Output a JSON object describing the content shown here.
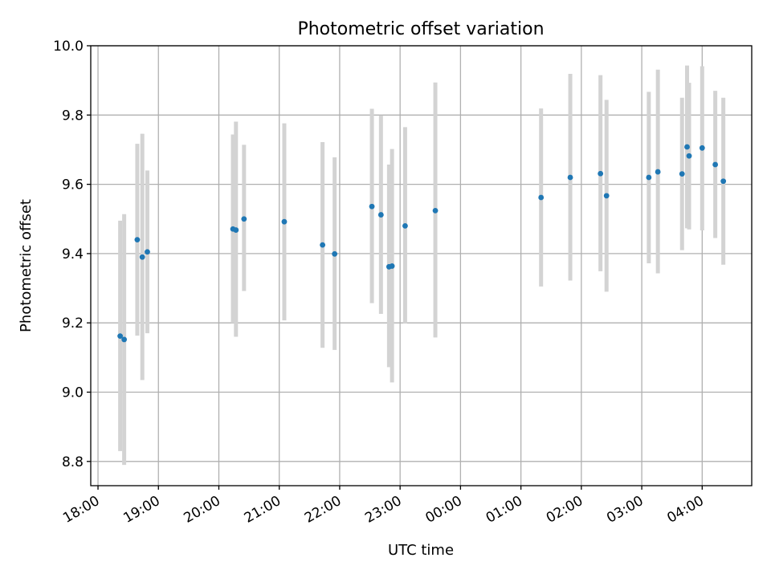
{
  "chart_data": {
    "type": "scatter",
    "title": "Photometric offset variation",
    "xlabel": "UTC time",
    "ylabel": "Photometric offset",
    "x_axis_type": "time",
    "x_start": "18:00",
    "x_range_hours": [
      -0.12,
      10.82
    ],
    "ylim": [
      8.73,
      10.0
    ],
    "grid": true,
    "x_ticks": [
      {
        "label": "18:00",
        "hours": 0
      },
      {
        "label": "19:00",
        "hours": 1
      },
      {
        "label": "20:00",
        "hours": 2
      },
      {
        "label": "21:00",
        "hours": 3
      },
      {
        "label": "22:00",
        "hours": 4
      },
      {
        "label": "23:00",
        "hours": 5
      },
      {
        "label": "00:00",
        "hours": 6
      },
      {
        "label": "01:00",
        "hours": 7
      },
      {
        "label": "02:00",
        "hours": 8
      },
      {
        "label": "03:00",
        "hours": 9
      },
      {
        "label": "04:00",
        "hours": 10
      }
    ],
    "y_ticks": [
      {
        "label": "8.8",
        "value": 8.8
      },
      {
        "label": "9.0",
        "value": 9.0
      },
      {
        "label": "9.2",
        "value": 9.2
      },
      {
        "label": "9.4",
        "value": 9.4
      },
      {
        "label": "9.6",
        "value": 9.6
      },
      {
        "label": "9.8",
        "value": 9.8
      },
      {
        "label": "10.0",
        "value": 10.0
      }
    ],
    "marker_color": "#1f77b4",
    "errorbar_color": "#d3d3d3",
    "points": [
      {
        "time": "18:22",
        "y": 9.162,
        "ylow": 8.83,
        "yhigh": 9.495
      },
      {
        "time": "18:26",
        "y": 9.152,
        "ylow": 8.79,
        "yhigh": 9.514
      },
      {
        "time": "18:39",
        "y": 9.44,
        "ylow": 9.163,
        "yhigh": 9.717
      },
      {
        "time": "18:44",
        "y": 9.39,
        "ylow": 9.035,
        "yhigh": 9.746
      },
      {
        "time": "18:49",
        "y": 9.405,
        "ylow": 9.17,
        "yhigh": 9.64
      },
      {
        "time": "20:14",
        "y": 9.471,
        "ylow": 9.2,
        "yhigh": 9.744
      },
      {
        "time": "20:17",
        "y": 9.468,
        "ylow": 9.16,
        "yhigh": 9.781
      },
      {
        "time": "20:25",
        "y": 9.5,
        "ylow": 9.292,
        "yhigh": 9.714
      },
      {
        "time": "21:05",
        "y": 9.492,
        "ylow": 9.207,
        "yhigh": 9.776
      },
      {
        "time": "21:43",
        "y": 9.425,
        "ylow": 9.128,
        "yhigh": 9.722
      },
      {
        "time": "21:55",
        "y": 9.399,
        "ylow": 9.122,
        "yhigh": 9.678
      },
      {
        "time": "22:32",
        "y": 9.536,
        "ylow": 9.257,
        "yhigh": 9.818
      },
      {
        "time": "22:41",
        "y": 9.512,
        "ylow": 9.226,
        "yhigh": 9.799
      },
      {
        "time": "22:49",
        "y": 9.362,
        "ylow": 9.072,
        "yhigh": 9.657
      },
      {
        "time": "22:52",
        "y": 9.364,
        "ylow": 9.028,
        "yhigh": 9.702
      },
      {
        "time": "23:05",
        "y": 9.48,
        "ylow": 9.199,
        "yhigh": 9.765
      },
      {
        "time": "23:35",
        "y": 9.524,
        "ylow": 9.158,
        "yhigh": 9.894
      },
      {
        "time": "01:20",
        "y": 9.562,
        "ylow": 9.305,
        "yhigh": 9.819
      },
      {
        "time": "01:49",
        "y": 9.62,
        "ylow": 9.322,
        "yhigh": 9.919
      },
      {
        "time": "02:19",
        "y": 9.631,
        "ylow": 9.349,
        "yhigh": 9.915
      },
      {
        "time": "02:25",
        "y": 9.567,
        "ylow": 9.29,
        "yhigh": 9.844
      },
      {
        "time": "03:07",
        "y": 9.62,
        "ylow": 9.372,
        "yhigh": 9.867
      },
      {
        "time": "03:16",
        "y": 9.636,
        "ylow": 9.343,
        "yhigh": 9.931
      },
      {
        "time": "03:40",
        "y": 9.63,
        "ylow": 9.41,
        "yhigh": 9.85
      },
      {
        "time": "03:45",
        "y": 9.708,
        "ylow": 9.473,
        "yhigh": 9.943
      },
      {
        "time": "03:47",
        "y": 9.682,
        "ylow": 9.47,
        "yhigh": 9.893
      },
      {
        "time": "04:00",
        "y": 9.705,
        "ylow": 9.467,
        "yhigh": 9.941
      },
      {
        "time": "04:13",
        "y": 9.657,
        "ylow": 9.445,
        "yhigh": 9.87
      },
      {
        "time": "04:21",
        "y": 9.609,
        "ylow": 9.368,
        "yhigh": 9.85
      }
    ]
  }
}
